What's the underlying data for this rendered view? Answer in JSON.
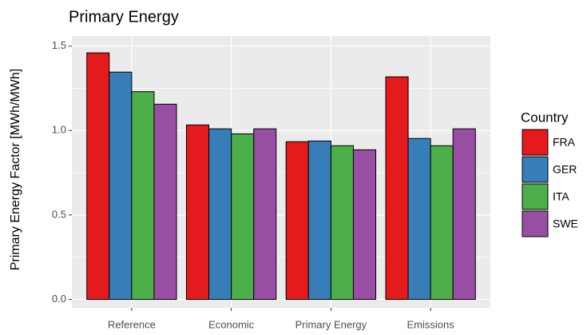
{
  "chart_data": {
    "type": "bar",
    "title": "Primary Energy",
    "y_label": "Primary Energy Factor [MWh/MWh]",
    "categories": [
      "Reference",
      "Economic",
      "Primary Energy",
      "Emissions"
    ],
    "legend_title": "Country",
    "legend_position": "right",
    "series": [
      {
        "name": "FRA",
        "color": "#e41a1c",
        "values": [
          1.46,
          1.033,
          0.934,
          1.318
        ]
      },
      {
        "name": "GER",
        "color": "#377eb8",
        "values": [
          1.346,
          1.01,
          0.938,
          0.953
        ]
      },
      {
        "name": "ITA",
        "color": "#4daf4a",
        "values": [
          1.23,
          0.98,
          0.91,
          0.91
        ]
      },
      {
        "name": "SWE",
        "color": "#984ea3",
        "values": [
          1.156,
          1.01,
          0.886,
          1.01
        ]
      }
    ],
    "ylim": [
      -0.05,
      1.56
    ],
    "yticks": [
      {
        "value": 0,
        "label": "0.0"
      },
      {
        "value": 0.5,
        "label": "0.5"
      },
      {
        "value": 1,
        "label": "1.0"
      },
      {
        "value": 1.5,
        "label": "1.5"
      }
    ],
    "y_minor_ticks": [
      0.25,
      0.75,
      1.25
    ],
    "grid": true
  }
}
